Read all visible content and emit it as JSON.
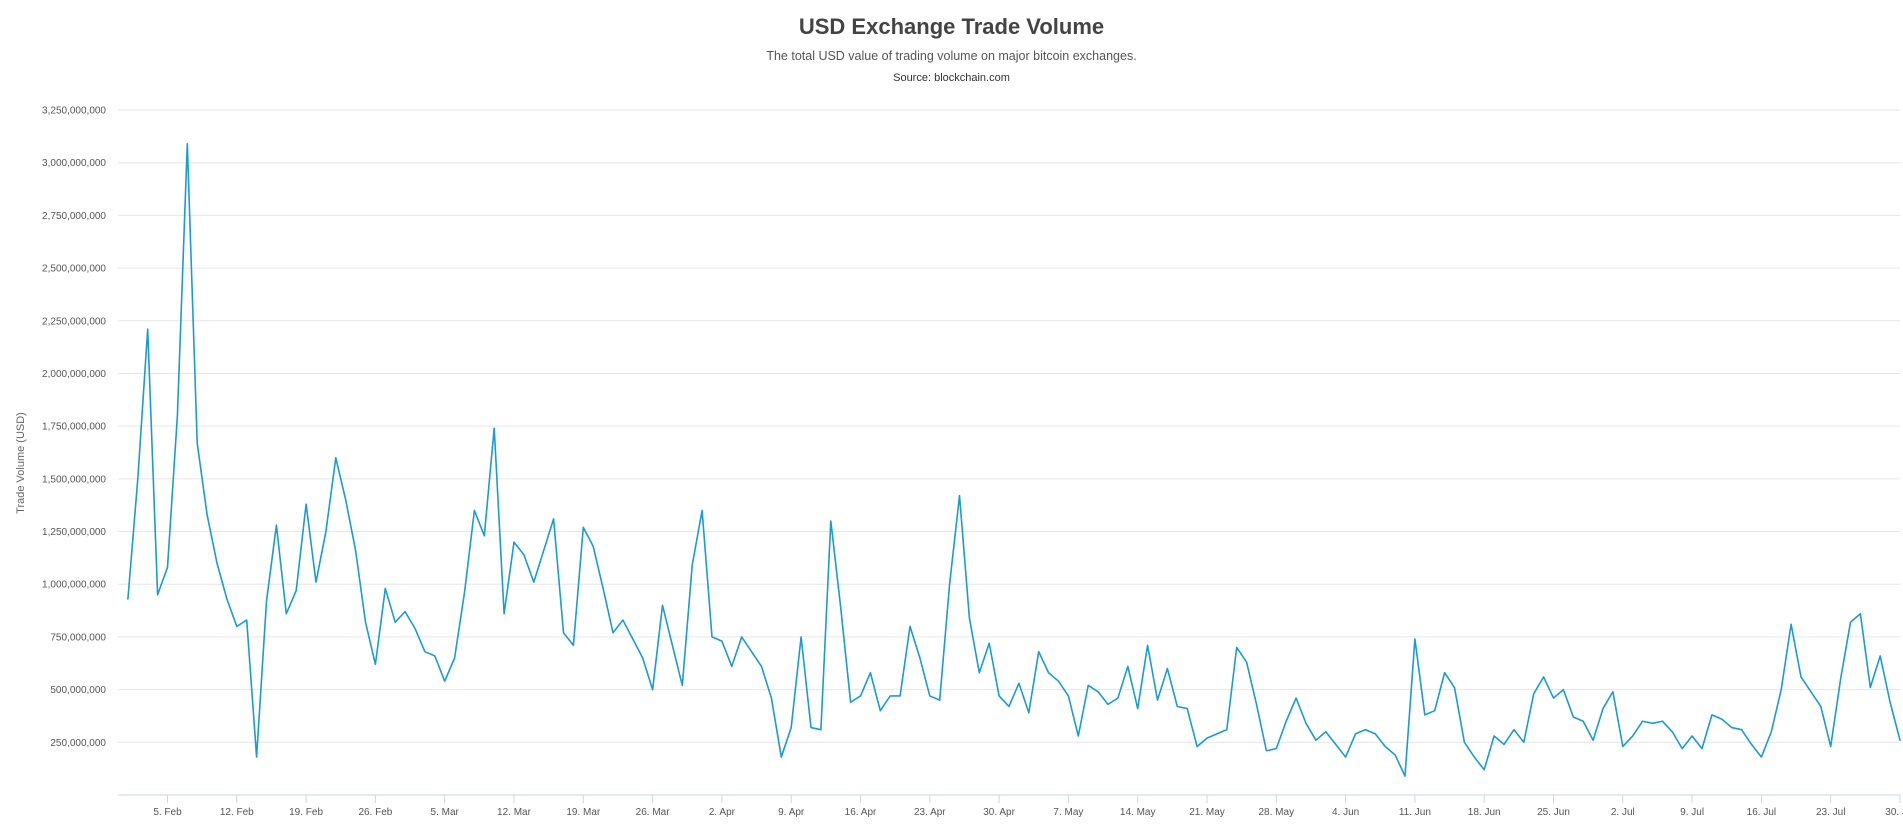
{
  "chart_data": {
    "type": "line",
    "title": "USD Exchange Trade Volume",
    "subtitle": "The total USD value of trading volume on major bitcoin exchanges.",
    "source": "Source: blockchain.com",
    "xlabel": "",
    "ylabel": "Trade Volume (USD)",
    "ylim": [
      0,
      3250000000
    ],
    "yticks": [
      250000000,
      500000000,
      750000000,
      1000000000,
      1250000000,
      1500000000,
      1750000000,
      2000000000,
      2250000000,
      2500000000,
      2750000000,
      3000000000,
      3250000000
    ],
    "ytick_labels": [
      "250,000,000",
      "500,000,000",
      "750,000,000",
      "1,000,000,000",
      "1,250,000,000",
      "1,500,000,000",
      "1,750,000,000",
      "2,000,000,000",
      "2,250,000,000",
      "2,500,000,000",
      "2,750,000,000",
      "3,000,000,000",
      "3,250,000,000"
    ],
    "xlim": [
      "2018-01-31",
      "2018-07-30"
    ],
    "xticks": [
      "2018-02-05",
      "2018-02-12",
      "2018-02-19",
      "2018-02-26",
      "2018-03-05",
      "2018-03-12",
      "2018-03-19",
      "2018-03-26",
      "2018-04-02",
      "2018-04-09",
      "2018-04-16",
      "2018-04-23",
      "2018-04-30",
      "2018-05-07",
      "2018-05-14",
      "2018-05-21",
      "2018-05-28",
      "2018-06-04",
      "2018-06-11",
      "2018-06-18",
      "2018-06-25",
      "2018-07-02",
      "2018-07-09",
      "2018-07-16",
      "2018-07-23",
      "2018-07-30"
    ],
    "xtick_labels": [
      "5. Feb",
      "12. Feb",
      "19. Feb",
      "26. Feb",
      "5. Mar",
      "12. Mar",
      "19. Mar",
      "26. Mar",
      "2. Apr",
      "9. Apr",
      "16. Apr",
      "23. Apr",
      "30. Apr",
      "7. May",
      "14. May",
      "21. May",
      "28. May",
      "4. Jun",
      "11. Jun",
      "18. Jun",
      "25. Jun",
      "2. Jul",
      "9. Jul",
      "16. Jul",
      "23. Jul",
      "30. Jul"
    ],
    "grid": true,
    "legend": "none",
    "line_color": "#1a9bd2",
    "series": [
      {
        "x_start": "2018-02-01",
        "x_step": "1 day",
        "values": [
          930000000,
          1500000000,
          2210000000,
          950000000,
          1080000000,
          1800000000,
          3090000000,
          1670000000,
          1330000000,
          1100000000,
          930000000,
          800000000,
          830000000,
          180000000,
          920000000,
          1280000000,
          860000000,
          970000000,
          1380000000,
          1010000000,
          1250000000,
          1600000000,
          1400000000,
          1160000000,
          820000000,
          620000000,
          980000000,
          820000000,
          870000000,
          790000000,
          680000000,
          660000000,
          540000000,
          650000000,
          960000000,
          1350000000,
          1230000000,
          1740000000,
          860000000,
          1200000000,
          1140000000,
          1010000000,
          1160000000,
          1310000000,
          770000000,
          710000000,
          1270000000,
          1180000000,
          980000000,
          770000000,
          830000000,
          740000000,
          650000000,
          500000000,
          900000000,
          710000000,
          520000000,
          1090000000,
          1350000000,
          750000000,
          730000000,
          610000000,
          750000000,
          680000000,
          610000000,
          460000000,
          180000000,
          320000000,
          750000000,
          320000000,
          310000000,
          1300000000,
          890000000,
          440000000,
          470000000,
          580000000,
          400000000,
          470000000,
          470000000,
          800000000,
          650000000,
          470000000,
          450000000,
          1000000000,
          1420000000,
          840000000,
          580000000,
          720000000,
          470000000,
          420000000,
          530000000,
          390000000,
          680000000,
          580000000,
          540000000,
          470000000,
          280000000,
          520000000,
          490000000,
          430000000,
          460000000,
          610000000,
          410000000,
          710000000,
          450000000,
          600000000,
          420000000,
          410000000,
          230000000,
          270000000,
          290000000,
          310000000,
          700000000,
          630000000,
          430000000,
          210000000,
          220000000,
          350000000,
          460000000,
          340000000,
          260000000,
          300000000,
          240000000,
          180000000,
          290000000,
          310000000,
          290000000,
          230000000,
          190000000,
          90000000,
          740000000,
          380000000,
          400000000,
          580000000,
          510000000,
          250000000,
          180000000,
          120000000,
          280000000,
          240000000,
          310000000,
          250000000,
          480000000,
          560000000,
          460000000,
          500000000,
          370000000,
          350000000,
          260000000,
          410000000,
          490000000,
          230000000,
          280000000,
          350000000,
          340000000,
          350000000,
          300000000,
          220000000,
          280000000,
          220000000,
          380000000,
          360000000,
          320000000,
          310000000,
          240000000,
          180000000,
          300000000,
          500000000,
          810000000,
          560000000,
          490000000,
          420000000,
          230000000,
          550000000,
          820000000,
          860000000,
          510000000,
          660000000,
          440000000,
          260000000
        ]
      }
    ]
  }
}
